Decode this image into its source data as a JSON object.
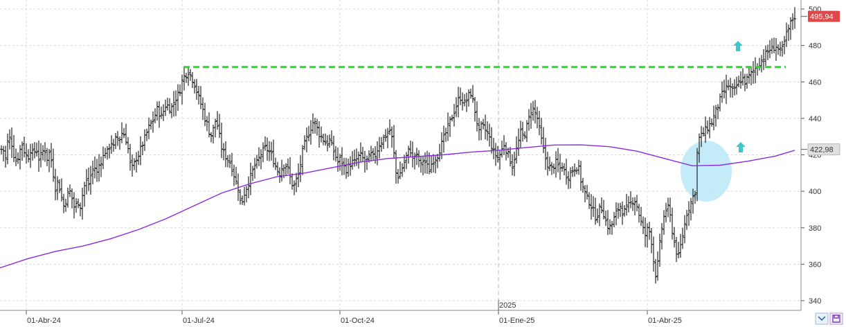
{
  "chart_data": {
    "type": "ohlc",
    "ylim": [
      334,
      503
    ],
    "y_ticks": [
      340,
      360,
      380,
      400,
      420,
      440,
      460,
      480,
      500
    ],
    "x_labels": [
      "01-Abr-24",
      "01-Jul-24",
      "01-Oct-24",
      "01-Ene-25",
      "01-Abr-25"
    ],
    "year_marker": "2025",
    "last_price": "495,94",
    "ma_value": "422,98",
    "resistance_level": 468,
    "colors": {
      "bars": "#111111",
      "moving_average": "#8a2be2",
      "resistance": "#22dd22",
      "price_tag": "#e04848",
      "ma_tag_bg": "#e0e0e0",
      "highlight_ellipse": "#bde9f7",
      "arrows": "#3cc8c8",
      "grid": "#d8d8d8"
    },
    "close_path": [
      [
        0,
        422
      ],
      [
        4,
        424
      ],
      [
        8,
        418
      ],
      [
        12,
        430
      ],
      [
        16,
        428
      ],
      [
        20,
        420
      ],
      [
        24,
        416
      ],
      [
        28,
        422
      ],
      [
        32,
        426
      ],
      [
        36,
        421
      ],
      [
        40,
        418
      ],
      [
        44,
        423
      ],
      [
        48,
        420
      ],
      [
        52,
        424
      ],
      [
        56,
        418
      ],
      [
        60,
        420
      ],
      [
        64,
        424
      ],
      [
        68,
        418
      ],
      [
        72,
        422
      ],
      [
        76,
        412
      ],
      [
        80,
        402
      ],
      [
        84,
        406
      ],
      [
        88,
        398
      ],
      [
        92,
        392
      ],
      [
        96,
        396
      ],
      [
        100,
        401
      ],
      [
        104,
        396
      ],
      [
        108,
        390
      ],
      [
        112,
        395
      ],
      [
        116,
        392
      ],
      [
        120,
        400
      ],
      [
        124,
        406
      ],
      [
        128,
        404
      ],
      [
        132,
        410
      ],
      [
        136,
        414
      ],
      [
        140,
        410
      ],
      [
        144,
        416
      ],
      [
        148,
        418
      ],
      [
        152,
        422
      ],
      [
        156,
        421
      ],
      [
        160,
        428
      ],
      [
        164,
        424
      ],
      [
        168,
        430
      ],
      [
        172,
        428
      ],
      [
        176,
        432
      ],
      [
        180,
        431
      ],
      [
        184,
        426
      ],
      [
        188,
        415
      ],
      [
        192,
        412
      ],
      [
        196,
        418
      ],
      [
        200,
        420
      ],
      [
        204,
        424
      ],
      [
        208,
        428
      ],
      [
        212,
        432
      ],
      [
        216,
        436
      ],
      [
        220,
        438
      ],
      [
        224,
        442
      ],
      [
        228,
        446
      ],
      [
        232,
        440
      ],
      [
        236,
        444
      ],
      [
        240,
        448
      ],
      [
        244,
        446
      ],
      [
        248,
        446
      ],
      [
        252,
        450
      ],
      [
        256,
        452
      ],
      [
        260,
        456
      ],
      [
        264,
        462
      ],
      [
        268,
        464
      ],
      [
        272,
        466
      ],
      [
        276,
        463
      ],
      [
        280,
        460
      ],
      [
        284,
        455
      ],
      [
        288,
        450
      ],
      [
        292,
        446
      ],
      [
        296,
        440
      ],
      [
        300,
        436
      ],
      [
        304,
        430
      ],
      [
        308,
        434
      ],
      [
        312,
        440
      ],
      [
        316,
        432
      ],
      [
        320,
        424
      ],
      [
        324,
        420
      ],
      [
        328,
        418
      ],
      [
        332,
        416
      ],
      [
        336,
        412
      ],
      [
        340,
        406
      ],
      [
        344,
        402
      ],
      [
        348,
        392
      ],
      [
        352,
        398
      ],
      [
        356,
        402
      ],
      [
        360,
        406
      ],
      [
        364,
        410
      ],
      [
        368,
        414
      ],
      [
        372,
        416
      ],
      [
        376,
        420
      ],
      [
        380,
        422
      ],
      [
        384,
        424
      ],
      [
        388,
        422
      ],
      [
        392,
        420
      ],
      [
        396,
        416
      ],
      [
        400,
        412
      ],
      [
        404,
        410
      ],
      [
        408,
        414
      ],
      [
        412,
        415
      ],
      [
        416,
        412
      ],
      [
        420,
        406
      ],
      [
        424,
        402
      ],
      [
        428,
        406
      ],
      [
        432,
        410
      ],
      [
        436,
        420
      ],
      [
        440,
        426
      ],
      [
        444,
        430
      ],
      [
        448,
        434
      ],
      [
        452,
        438
      ],
      [
        456,
        437
      ],
      [
        460,
        432
      ],
      [
        464,
        430
      ],
      [
        468,
        428
      ],
      [
        472,
        426
      ],
      [
        476,
        428
      ],
      [
        480,
        424
      ],
      [
        484,
        420
      ],
      [
        488,
        416
      ],
      [
        492,
        418
      ],
      [
        496,
        414
      ],
      [
        500,
        412
      ],
      [
        504,
        414
      ],
      [
        508,
        416
      ],
      [
        512,
        416
      ],
      [
        516,
        418
      ],
      [
        520,
        420
      ],
      [
        524,
        418
      ],
      [
        528,
        416
      ],
      [
        532,
        418
      ],
      [
        536,
        420
      ],
      [
        540,
        418
      ],
      [
        544,
        422
      ],
      [
        548,
        426
      ],
      [
        552,
        428
      ],
      [
        556,
        430
      ],
      [
        560,
        432
      ],
      [
        564,
        434
      ],
      [
        568,
        424
      ],
      [
        572,
        410
      ],
      [
        576,
        408
      ],
      [
        580,
        412
      ],
      [
        584,
        416
      ],
      [
        588,
        420
      ],
      [
        592,
        424
      ],
      [
        596,
        418
      ],
      [
        600,
        420
      ],
      [
        604,
        418
      ],
      [
        608,
        414
      ],
      [
        612,
        418
      ],
      [
        616,
        414
      ],
      [
        620,
        412
      ],
      [
        624,
        416
      ],
      [
        628,
        418
      ],
      [
        632,
        420
      ],
      [
        636,
        424
      ],
      [
        640,
        428
      ],
      [
        644,
        432
      ],
      [
        648,
        436
      ],
      [
        652,
        440
      ],
      [
        656,
        444
      ],
      [
        660,
        448
      ],
      [
        664,
        452
      ],
      [
        668,
        450
      ],
      [
        672,
        448
      ],
      [
        676,
        452
      ],
      [
        680,
        454
      ],
      [
        684,
        448
      ],
      [
        688,
        440
      ],
      [
        692,
        432
      ],
      [
        696,
        436
      ],
      [
        700,
        434
      ],
      [
        704,
        432
      ],
      [
        708,
        428
      ],
      [
        712,
        422
      ],
      [
        716,
        420
      ],
      [
        720,
        418
      ],
      [
        724,
        422
      ],
      [
        728,
        426
      ],
      [
        732,
        422
      ],
      [
        736,
        418
      ],
      [
        740,
        414
      ],
      [
        744,
        420
      ],
      [
        748,
        426
      ],
      [
        752,
        432
      ],
      [
        756,
        430
      ],
      [
        760,
        434
      ],
      [
        764,
        440
      ],
      [
        768,
        446
      ],
      [
        772,
        444
      ],
      [
        776,
        440
      ],
      [
        780,
        432
      ],
      [
        784,
        424
      ],
      [
        788,
        418
      ],
      [
        792,
        414
      ],
      [
        796,
        412
      ],
      [
        800,
        414
      ],
      [
        804,
        416
      ],
      [
        808,
        412
      ],
      [
        812,
        414
      ],
      [
        816,
        410
      ],
      [
        820,
        408
      ],
      [
        824,
        410
      ],
      [
        828,
        412
      ],
      [
        832,
        414
      ],
      [
        836,
        412
      ],
      [
        840,
        404
      ],
      [
        844,
        400
      ],
      [
        848,
        396
      ],
      [
        852,
        394
      ],
      [
        856,
        390
      ],
      [
        860,
        386
      ],
      [
        864,
        388
      ],
      [
        868,
        392
      ],
      [
        872,
        388
      ],
      [
        876,
        382
      ],
      [
        880,
        380
      ],
      [
        884,
        382
      ],
      [
        888,
        386
      ],
      [
        892,
        390
      ],
      [
        896,
        392
      ],
      [
        900,
        388
      ],
      [
        904,
        390
      ],
      [
        908,
        392
      ],
      [
        912,
        394
      ],
      [
        916,
        396
      ],
      [
        920,
        392
      ],
      [
        924,
        386
      ],
      [
        928,
        380
      ],
      [
        932,
        376
      ],
      [
        936,
        380
      ],
      [
        940,
        376
      ],
      [
        944,
        362
      ],
      [
        948,
        352
      ],
      [
        952,
        368
      ],
      [
        956,
        380
      ],
      [
        960,
        388
      ],
      [
        964,
        392
      ],
      [
        968,
        386
      ],
      [
        972,
        376
      ],
      [
        976,
        368
      ],
      [
        980,
        364
      ],
      [
        984,
        372
      ],
      [
        988,
        380
      ],
      [
        992,
        388
      ],
      [
        996,
        392
      ],
      [
        1000,
        396
      ],
      [
        1004,
        400
      ],
      [
        1008,
        428
      ],
      [
        1012,
        430
      ],
      [
        1016,
        432
      ],
      [
        1020,
        434
      ],
      [
        1024,
        436
      ],
      [
        1028,
        438
      ],
      [
        1032,
        442
      ],
      [
        1036,
        446
      ],
      [
        1040,
        450
      ],
      [
        1044,
        454
      ],
      [
        1048,
        456
      ],
      [
        1052,
        458
      ],
      [
        1056,
        456
      ],
      [
        1060,
        454
      ],
      [
        1064,
        458
      ],
      [
        1068,
        460
      ],
      [
        1072,
        462
      ],
      [
        1076,
        460
      ],
      [
        1080,
        462
      ],
      [
        1084,
        464
      ],
      [
        1088,
        466
      ],
      [
        1092,
        468
      ],
      [
        1096,
        470
      ],
      [
        1100,
        472
      ],
      [
        1104,
        474
      ],
      [
        1108,
        476
      ],
      [
        1112,
        478
      ],
      [
        1116,
        478
      ],
      [
        1120,
        480
      ],
      [
        1124,
        478
      ],
      [
        1128,
        476
      ],
      [
        1132,
        480
      ],
      [
        1136,
        486
      ],
      [
        1140,
        490
      ],
      [
        1144,
        494
      ],
      [
        1148,
        496
      ]
    ],
    "ma_path": [
      [
        0,
        358
      ],
      [
        40,
        363
      ],
      [
        80,
        367
      ],
      [
        120,
        370
      ],
      [
        160,
        374
      ],
      [
        200,
        379
      ],
      [
        240,
        385
      ],
      [
        280,
        392
      ],
      [
        320,
        399
      ],
      [
        360,
        404
      ],
      [
        400,
        408
      ],
      [
        440,
        410
      ],
      [
        480,
        413
      ],
      [
        520,
        416
      ],
      [
        560,
        418
      ],
      [
        600,
        419
      ],
      [
        640,
        420
      ],
      [
        680,
        421.5
      ],
      [
        720,
        422.5
      ],
      [
        760,
        424
      ],
      [
        800,
        425.4
      ],
      [
        840,
        425.5
      ],
      [
        880,
        424.5
      ],
      [
        920,
        422
      ],
      [
        960,
        418
      ],
      [
        1000,
        414
      ],
      [
        1040,
        414.3
      ],
      [
        1080,
        416.5
      ],
      [
        1120,
        419.3
      ],
      [
        1148,
        422.5
      ]
    ]
  }
}
